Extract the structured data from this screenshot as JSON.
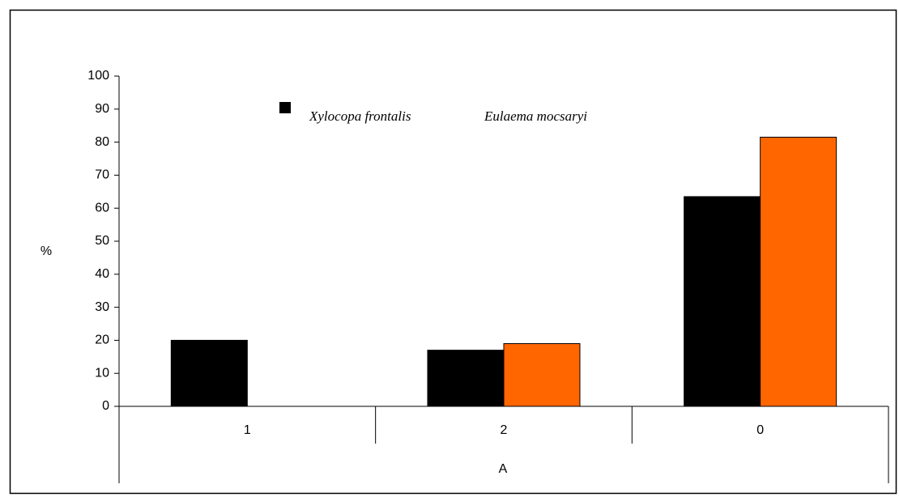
{
  "chart_data": {
    "type": "bar",
    "ylabel": "%",
    "xlabel": "A",
    "categories": [
      "1",
      "2",
      "0"
    ],
    "series": [
      {
        "name": "Xylocopa frontalis",
        "color": "#000000",
        "values": [
          20,
          17,
          63.5
        ]
      },
      {
        "name": "Eulaema mocsaryi",
        "color": "#ff6600",
        "values": [
          0,
          19,
          81.5
        ]
      }
    ],
    "ylim": [
      0,
      100
    ],
    "yticks": [
      0,
      10,
      20,
      30,
      40,
      50,
      60,
      70,
      80,
      90,
      100
    ]
  }
}
